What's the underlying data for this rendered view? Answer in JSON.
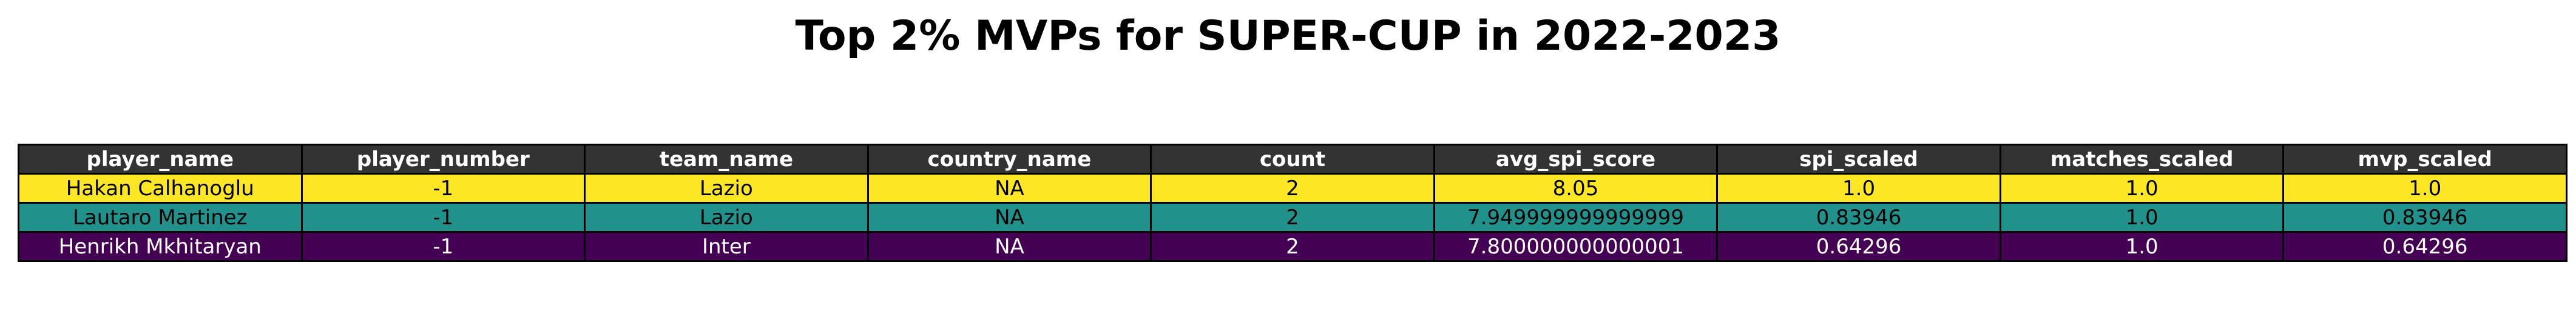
{
  "title": "Top 2% MVPs for SUPER-CUP in 2022-2023",
  "chart_data": {
    "type": "table",
    "title": "Top 2% MVPs for SUPER-CUP in 2022-2023",
    "columns": [
      "player_name",
      "player_number",
      "team_name",
      "country_name",
      "count",
      "avg_spi_score",
      "spi_scaled",
      "matches_scaled",
      "mvp_scaled"
    ],
    "rows": [
      [
        "Hakan Calhanoglu",
        "-1",
        "Lazio",
        "NA",
        "2",
        "8.05",
        "1.0",
        "1.0",
        "1.0"
      ],
      [
        "Lautaro Martinez",
        "-1",
        "Lazio",
        "NA",
        "2",
        "7.949999999999999",
        "0.83946",
        "1.0",
        "0.83946"
      ],
      [
        "Henrikh Mkhitaryan",
        "-1",
        "Inter",
        "NA",
        "2",
        "7.800000000000001",
        "0.64296",
        "1.0",
        "0.64296"
      ]
    ],
    "header_color": "#333333",
    "header_text_color": "#ffffff",
    "row_colors": [
      "#fde725",
      "#21918c",
      "#440154"
    ],
    "row_text_colors": [
      "#000000",
      "#000000",
      "#ffffff"
    ]
  }
}
